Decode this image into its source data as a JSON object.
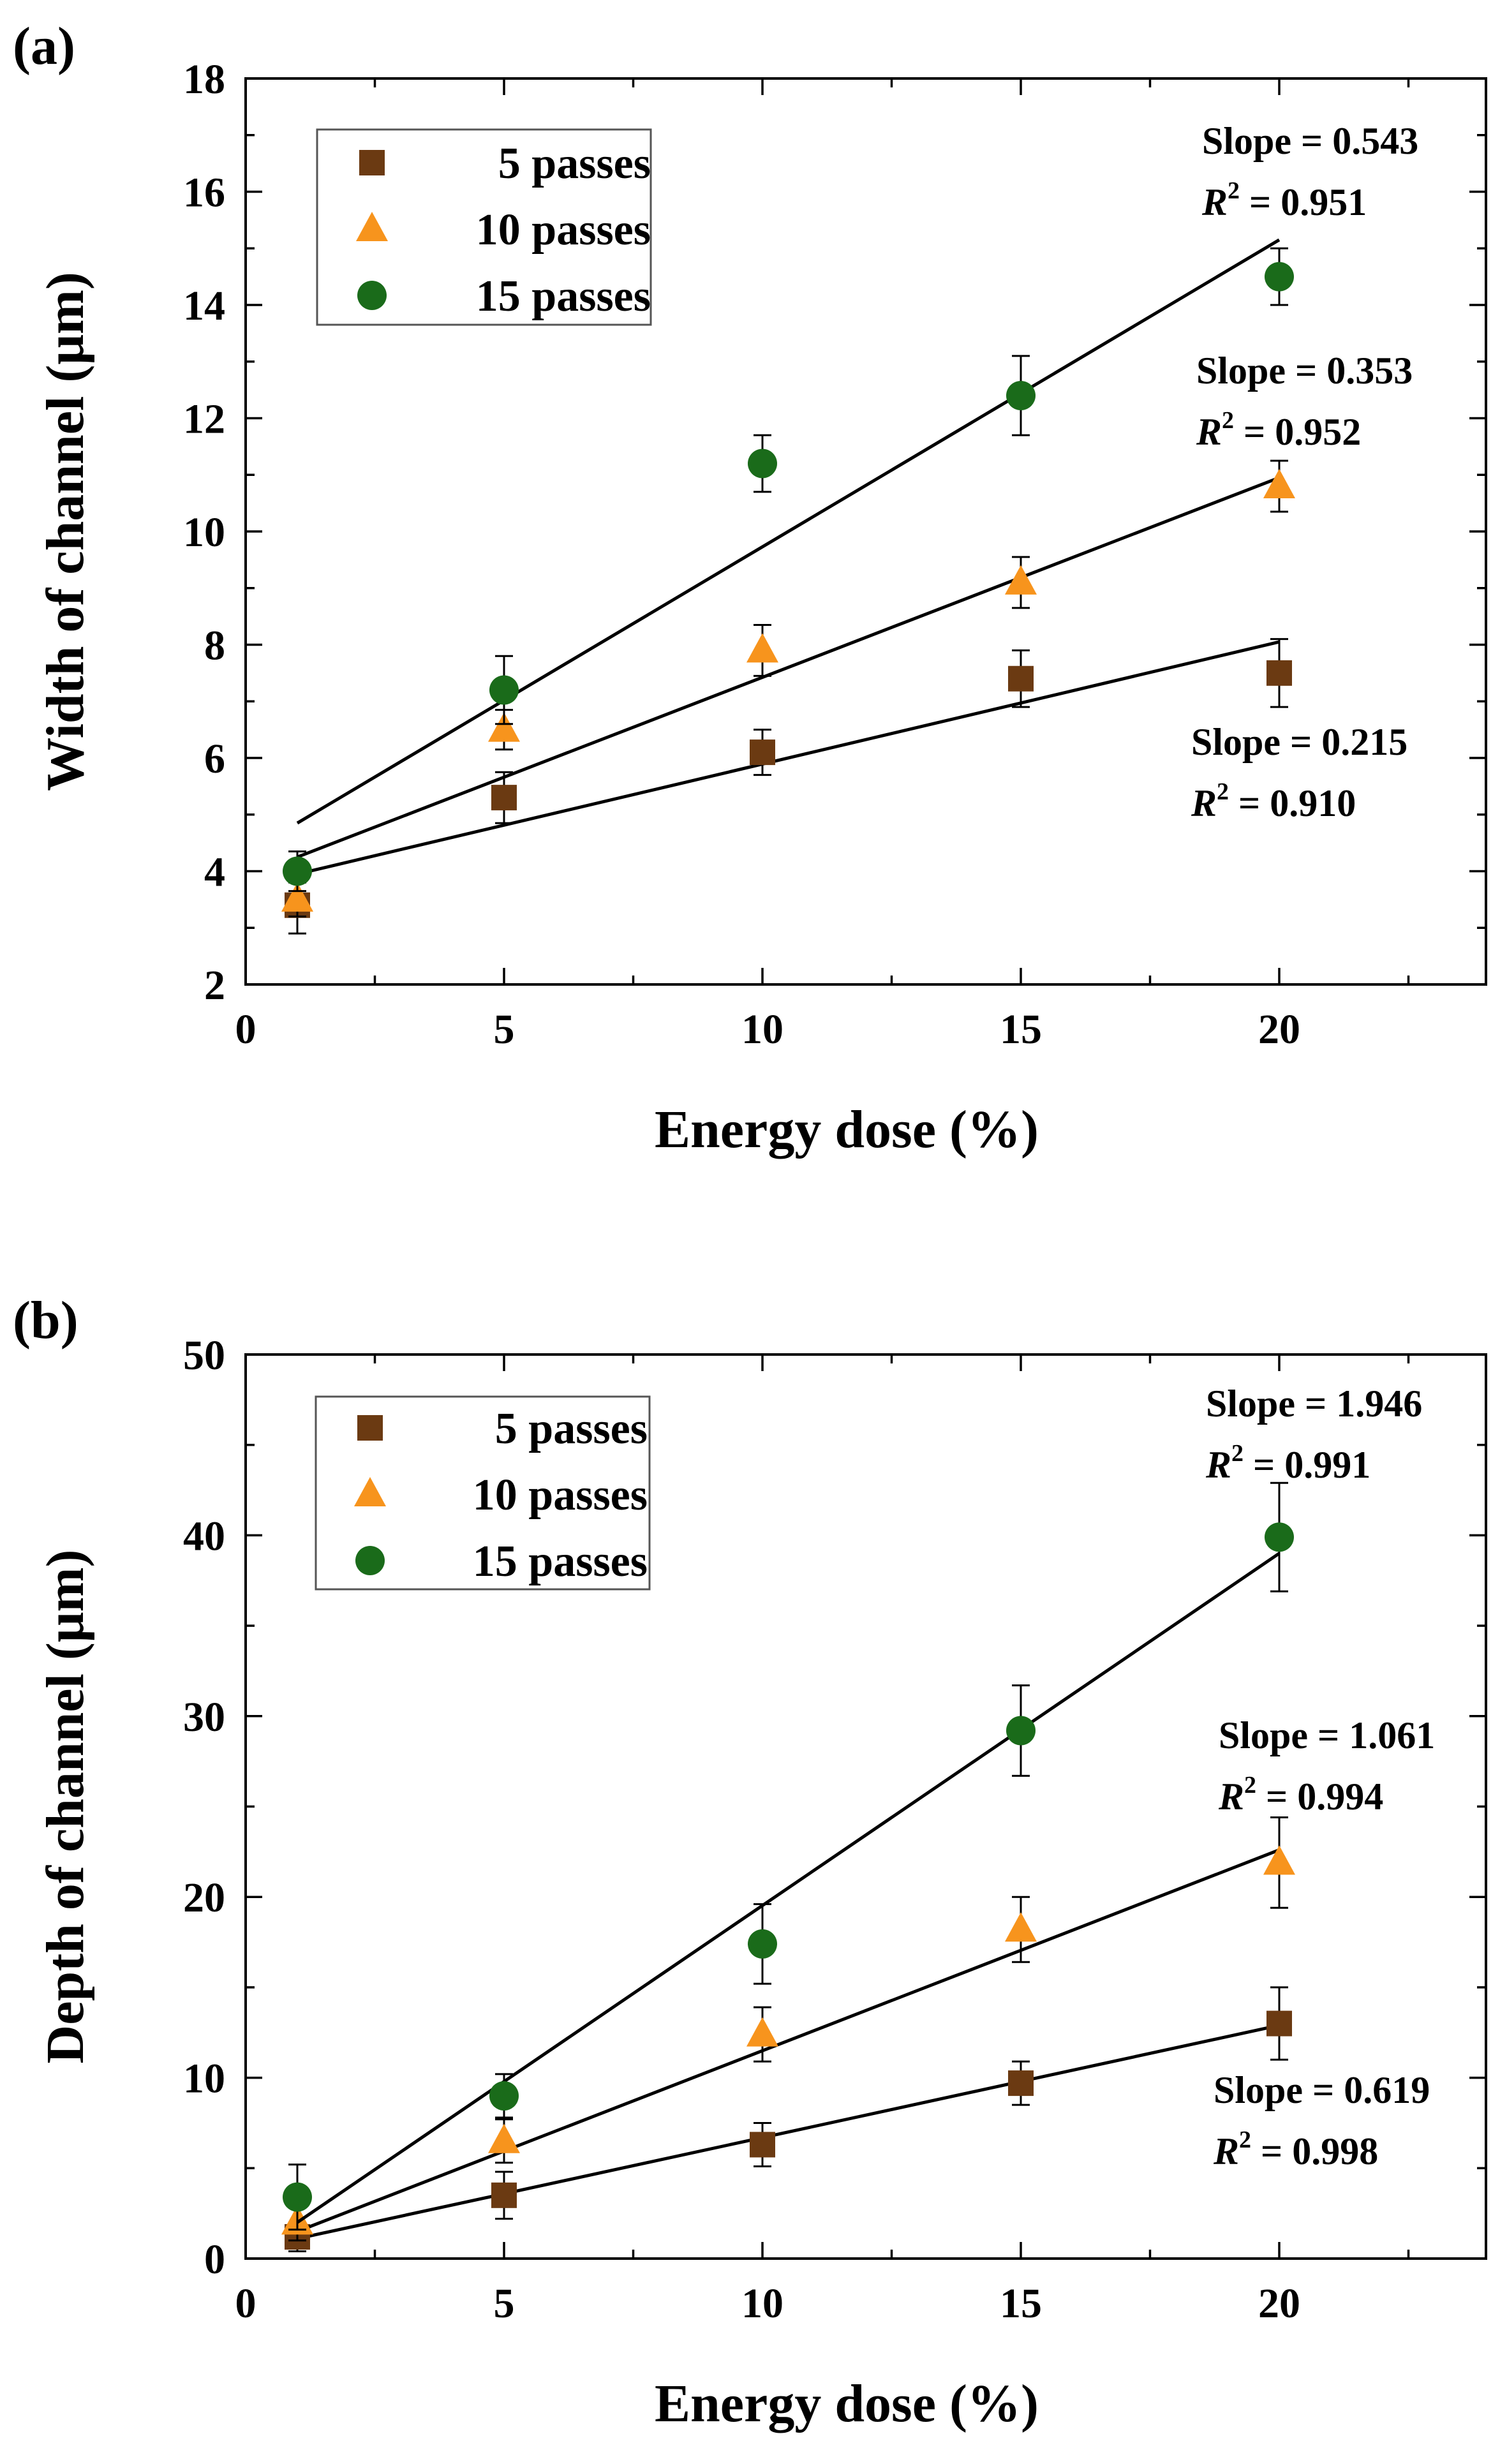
{
  "chart_data": [
    {
      "type": "scatter",
      "panel_label": "(a)",
      "title": "",
      "xlabel": "Energy dose (%)",
      "ylabel": "Width of channel (μm)",
      "xlim": [
        0,
        24
      ],
      "ylim": [
        2,
        18
      ],
      "xticks": [
        0,
        5,
        10,
        15,
        20
      ],
      "yticks": [
        2,
        4,
        6,
        8,
        10,
        12,
        14,
        16,
        18
      ],
      "xtick_labels": [
        "0",
        "5",
        "10",
        "15",
        "20"
      ],
      "ytick_labels": [
        "2",
        "4",
        "6",
        "8",
        "10",
        "12",
        "14",
        "16",
        "18"
      ],
      "grid": false,
      "legend_position": "top-left",
      "x": [
        1,
        5,
        10,
        15,
        20
      ],
      "series": [
        {
          "name": "5 passes",
          "marker": "square",
          "color": "#6b3a12",
          "values": [
            3.4,
            5.3,
            6.1,
            7.4,
            7.5
          ],
          "errors": [
            0.5,
            0.45,
            0.4,
            0.5,
            0.6
          ],
          "fit": {
            "x": [
              1,
              20
            ],
            "y": [
              3.95,
              8.05
            ]
          },
          "slope_text": "Slope = 0.215",
          "r2_value": " = 0.910"
        },
        {
          "name": "10 passes",
          "marker": "triangle",
          "color": "#f7941d",
          "values": [
            3.5,
            6.5,
            7.9,
            9.1,
            10.8
          ],
          "errors": [
            0.3,
            0.35,
            0.45,
            0.45,
            0.45
          ],
          "fit": {
            "x": [
              1,
              20
            ],
            "y": [
              4.25,
              10.95
            ]
          },
          "slope_text": "Slope = 0.353",
          "r2_value": " = 0.952"
        },
        {
          "name": "15 passes",
          "marker": "circle",
          "color": "#1a6b1a",
          "values": [
            4.0,
            7.2,
            11.2,
            12.4,
            14.5
          ],
          "errors": [
            0.35,
            0.6,
            0.5,
            0.7,
            0.5
          ],
          "fit": {
            "x": [
              1,
              20
            ],
            "y": [
              4.85,
              15.15
            ]
          },
          "slope_text": "Slope = 0.543",
          "r2_value": " = 0.951"
        }
      ]
    },
    {
      "type": "scatter",
      "panel_label": "(b)",
      "title": "",
      "xlabel": "Energy dose (%)",
      "ylabel": "Depth of channel (μm)",
      "xlim": [
        0,
        24
      ],
      "ylim": [
        0,
        50
      ],
      "xticks": [
        0,
        5,
        10,
        15,
        20
      ],
      "yticks": [
        0,
        10,
        20,
        30,
        40,
        50
      ],
      "xtick_labels": [
        "0",
        "5",
        "10",
        "15",
        "20"
      ],
      "ytick_labels": [
        "0",
        "10",
        "20",
        "30",
        "40",
        "50"
      ],
      "grid": false,
      "legend_position": "top-left",
      "x": [
        1,
        5,
        10,
        15,
        20
      ],
      "series": [
        {
          "name": "5 passes",
          "marker": "square",
          "color": "#6b3a12",
          "values": [
            1.2,
            3.5,
            6.3,
            9.7,
            13.0
          ],
          "errors": [
            0.8,
            1.3,
            1.2,
            1.2,
            2.0
          ],
          "fit": {
            "x": [
              1,
              20
            ],
            "y": [
              1.1,
              12.9
            ]
          },
          "slope_text": "Slope = 0.619",
          "r2_value": " = 0.998"
        },
        {
          "name": "10 passes",
          "marker": "triangle",
          "color": "#f7941d",
          "values": [
            2.0,
            6.5,
            12.4,
            18.2,
            21.9
          ],
          "errors": [
            1.0,
            1.2,
            1.5,
            1.8,
            2.5
          ],
          "fit": {
            "x": [
              1,
              20
            ],
            "y": [
              1.5,
              22.6
            ]
          },
          "slope_text": "Slope = 1.061",
          "r2_value": " = 0.994"
        },
        {
          "name": "15 passes",
          "marker": "circle",
          "color": "#1a6b1a",
          "values": [
            3.4,
            9.0,
            17.4,
            29.2,
            39.9
          ],
          "errors": [
            1.8,
            1.2,
            2.2,
            2.5,
            3.0
          ],
          "fit": {
            "x": [
              1,
              20
            ],
            "y": [
              2.0,
              39.0
            ]
          },
          "slope_text": "Slope = 1.946",
          "r2_value": " = 0.991"
        }
      ]
    }
  ],
  "r2_prefix": "R"
}
